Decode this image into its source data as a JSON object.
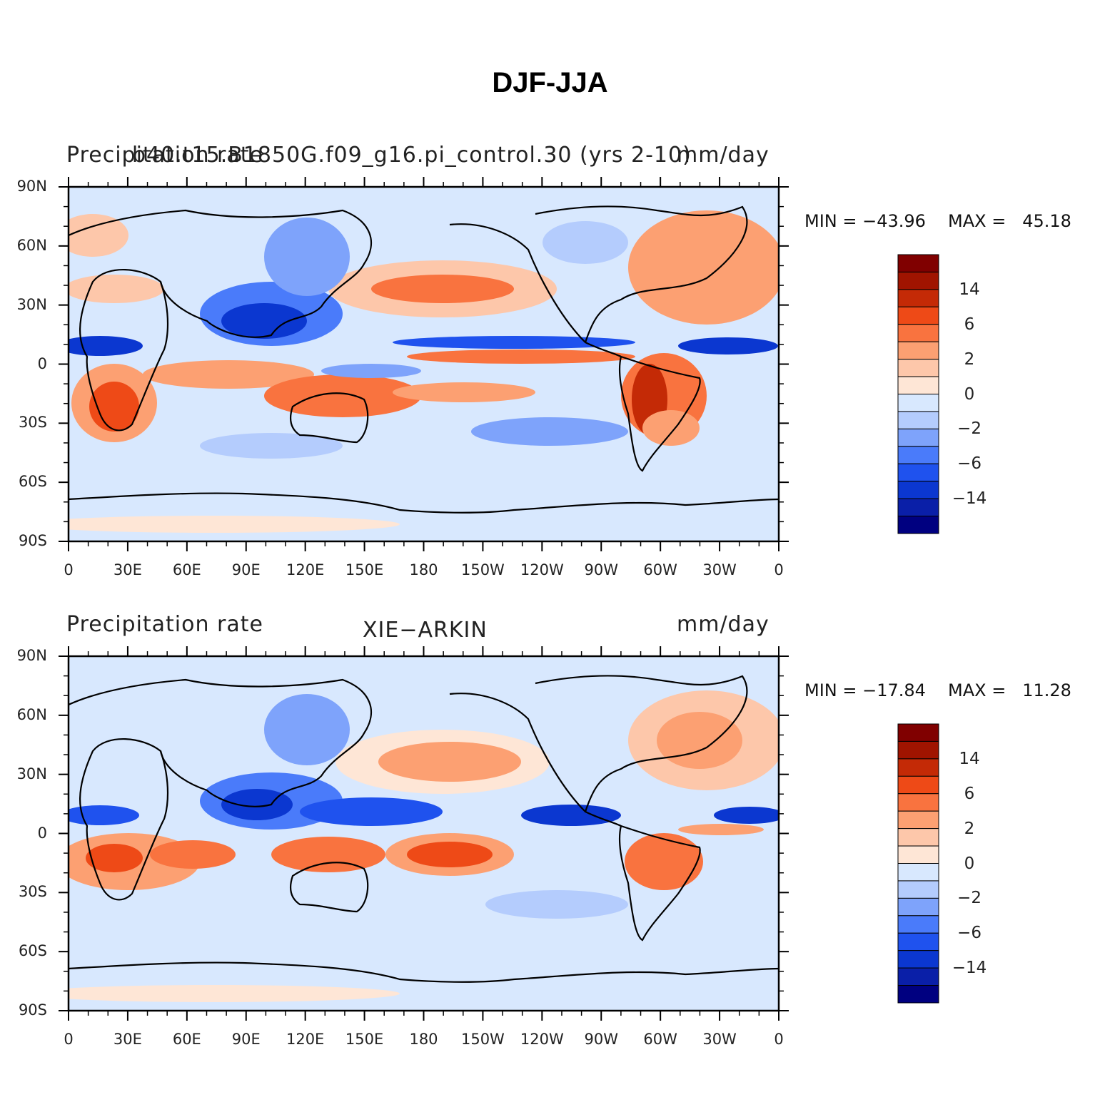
{
  "figure": {
    "title": "DJF-JJA"
  },
  "panels": [
    {
      "left_label": "Precipitation rate",
      "center_label": "b40.t15.B1850G.f09_g16.pi_control.30 (yrs 2-10)",
      "right_label": "mm/day",
      "min_text": "MIN = −43.96",
      "max_text": "MAX =   45.18"
    },
    {
      "left_label": "Precipitation rate",
      "center_label": "XIE−ARKIN",
      "right_label": "mm/day",
      "min_text": "MIN = −17.84",
      "max_text": "MAX =   11.28"
    }
  ],
  "axes": {
    "lat_labels": [
      "90N",
      "60N",
      "30N",
      "0",
      "30S",
      "60S",
      "90S"
    ],
    "lon_labels": [
      "0",
      "30E",
      "60E",
      "90E",
      "120E",
      "150E",
      "180",
      "150W",
      "120W",
      "90W",
      "60W",
      "30W",
      "0"
    ]
  },
  "colorbar": {
    "colors": [
      "#000080",
      "#0a1fa8",
      "#0b37d0",
      "#1f52ee",
      "#4a7bfa",
      "#7ea3fb",
      "#b4ccfd",
      "#d8e8fe",
      "#fee6d6",
      "#fdc7aa",
      "#fca072",
      "#f9733f",
      "#ee4a17",
      "#c42a06",
      "#a01400",
      "#800000"
    ],
    "labels": [
      "14",
      "6",
      "2",
      "0",
      "−2",
      "−6",
      "−14"
    ]
  }
}
